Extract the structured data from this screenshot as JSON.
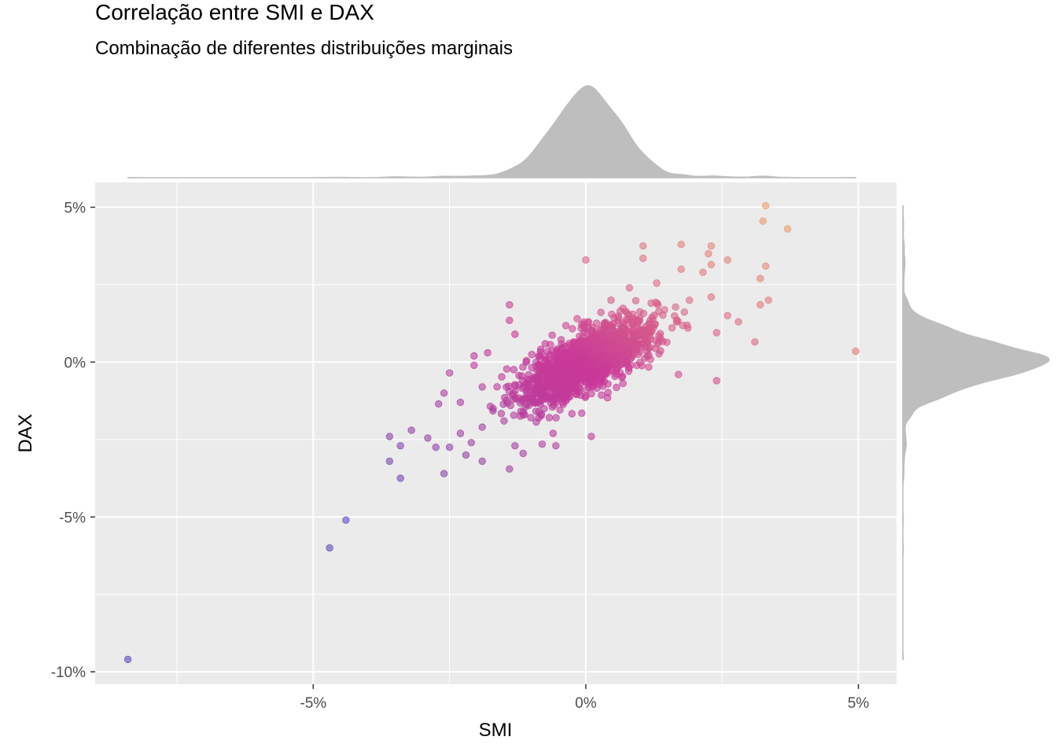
{
  "colors": {
    "panel": "#ebebeb",
    "grid_major": "#ffffff",
    "marginal_fill": "#bebebe",
    "point_low": "#5a4fb8",
    "point_mid": "#c93a98",
    "point_high": "#f0a070"
  },
  "chart_data": {
    "type": "scatter",
    "title": "Correlação entre SMI e DAX",
    "subtitle": "Combinação de diferentes distribuições marginais",
    "xlabel": "SMI",
    "ylabel": "DAX",
    "xlim": [
      -9.0,
      5.7
    ],
    "ylim": [
      -10.4,
      5.8
    ],
    "x_ticks": [
      {
        "value": -5,
        "label": "-5%"
      },
      {
        "value": 0,
        "label": "0%"
      },
      {
        "value": 5,
        "label": "5%"
      }
    ],
    "y_ticks": [
      {
        "value": -10,
        "label": "-10%"
      },
      {
        "value": -5,
        "label": "-5%"
      },
      {
        "value": 0,
        "label": "0%"
      },
      {
        "value": 5,
        "label": "5%"
      }
    ],
    "grid": true,
    "marginals": {
      "top": "density of SMI",
      "right": "density of DAX"
    },
    "points": [
      [
        -8.4,
        -9.6
      ],
      [
        -4.7,
        -6.0
      ],
      [
        -4.4,
        -5.1
      ],
      [
        4.95,
        0.35
      ],
      [
        3.3,
        5.05
      ],
      [
        3.25,
        4.55
      ],
      [
        3.7,
        4.3
      ],
      [
        3.3,
        3.1
      ],
      [
        3.2,
        2.7
      ],
      [
        3.35,
        2.0
      ],
      [
        3.2,
        1.85
      ],
      [
        3.1,
        0.65
      ],
      [
        2.8,
        1.3
      ],
      [
        2.6,
        1.5
      ],
      [
        2.4,
        -0.6
      ],
      [
        2.6,
        3.3
      ],
      [
        2.3,
        3.75
      ],
      [
        2.25,
        3.5
      ],
      [
        2.3,
        3.15
      ],
      [
        2.15,
        2.9
      ],
      [
        1.75,
        3.8
      ],
      [
        1.75,
        3.0
      ],
      [
        1.05,
        3.75
      ],
      [
        1.05,
        3.35
      ],
      [
        0.0,
        3.3
      ],
      [
        1.3,
        2.55
      ],
      [
        0.8,
        2.4
      ],
      [
        1.9,
        2.0
      ],
      [
        2.3,
        2.1
      ],
      [
        2.4,
        0.95
      ],
      [
        1.7,
        -0.4
      ],
      [
        -1.4,
        1.85
      ],
      [
        -1.4,
        1.35
      ],
      [
        -1.3,
        0.9
      ],
      [
        -1.8,
        0.3
      ],
      [
        -2.05,
        0.2
      ],
      [
        -2.05,
        -0.1
      ],
      [
        -2.5,
        -0.35
      ],
      [
        -3.6,
        -2.4
      ],
      [
        -3.4,
        -2.7
      ],
      [
        -3.6,
        -3.2
      ],
      [
        -3.4,
        -3.75
      ],
      [
        -3.2,
        -2.2
      ],
      [
        -2.9,
        -2.45
      ],
      [
        -2.75,
        -2.75
      ],
      [
        -2.6,
        -3.6
      ],
      [
        -2.5,
        -2.75
      ],
      [
        -2.3,
        -2.3
      ],
      [
        -2.2,
        -3.0
      ],
      [
        -2.1,
        -2.6
      ],
      [
        -1.9,
        -3.2
      ],
      [
        -1.4,
        -3.45
      ],
      [
        -1.3,
        -2.7
      ],
      [
        -1.15,
        -2.95
      ],
      [
        -0.6,
        -2.3
      ],
      [
        0.1,
        -2.4
      ],
      [
        -0.8,
        -2.65
      ],
      [
        -0.55,
        -2.7
      ],
      [
        -1.9,
        -0.8
      ],
      [
        -2.3,
        -1.3
      ],
      [
        -2.6,
        -1.0
      ],
      [
        -2.7,
        -1.35
      ],
      [
        -1.7,
        -1.5
      ],
      [
        -1.5,
        -1.9
      ],
      [
        -1.9,
        -2.1
      ]
    ],
    "core_cloud": {
      "count": 1450,
      "correlation": 0.72,
      "x_sd": 0.62,
      "y_sd": 0.7
    }
  }
}
